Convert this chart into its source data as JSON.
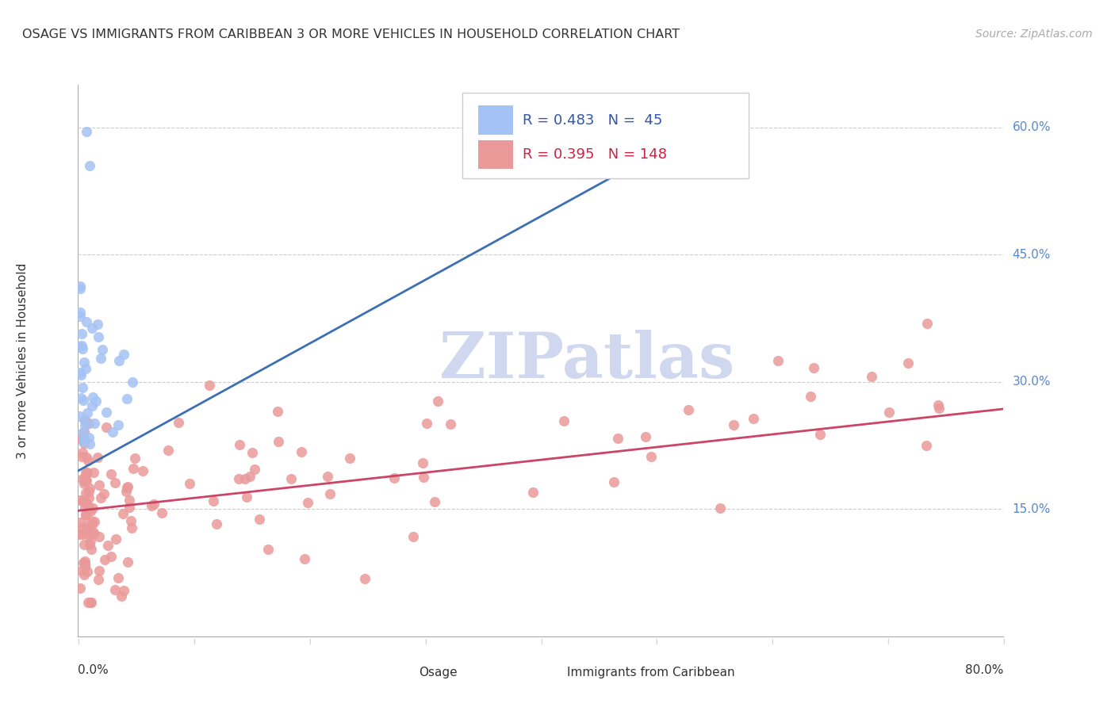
{
  "title": "OSAGE VS IMMIGRANTS FROM CARIBBEAN 3 OR MORE VEHICLES IN HOUSEHOLD CORRELATION CHART",
  "source": "Source: ZipAtlas.com",
  "ylabel": "3 or more Vehicles in Household",
  "ytick_values": [
    0.15,
    0.3,
    0.45,
    0.6
  ],
  "ytick_labels": [
    "15.0%",
    "30.0%",
    "45.0%",
    "60.0%"
  ],
  "xlim": [
    0.0,
    0.8
  ],
  "ylim": [
    0.0,
    0.65
  ],
  "legend_blue_R": "0.483",
  "legend_blue_N": "45",
  "legend_pink_R": "0.395",
  "legend_pink_N": "148",
  "blue_color": "#a4c2f4",
  "pink_color": "#ea9999",
  "blue_line_color": "#3d6fb5",
  "pink_line_color": "#cc4466",
  "watermark_text": "ZIPatlas",
  "watermark_color": "#d0d8f0",
  "blue_line_x": [
    0.0,
    0.56
  ],
  "blue_line_y": [
    0.195,
    0.615
  ],
  "pink_line_x": [
    0.0,
    0.8
  ],
  "pink_line_y": [
    0.148,
    0.268
  ]
}
